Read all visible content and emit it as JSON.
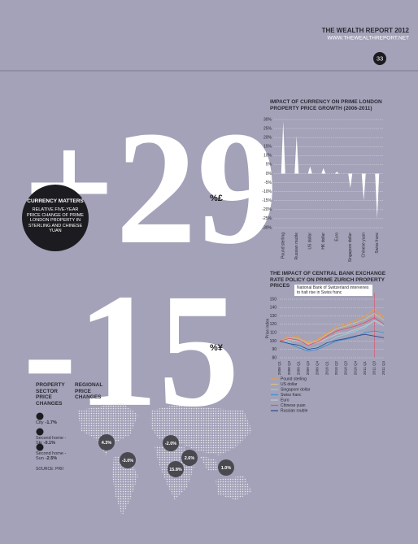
{
  "header": {
    "title": "THE WEALTH REPORT 2012",
    "url": "WWW.THEWEALTHREPORT.NET",
    "page": "33"
  },
  "headline": {
    "figures": [
      {
        "number": "+29",
        "unit": "%£"
      },
      {
        "number": "-15",
        "unit": "%¥"
      }
    ],
    "badge": {
      "title": "CURRENCY MATTERS",
      "text": "RELATIVE FIVE-YEAR PRICE CHANGE OF PRIME LONDON PROPERTY IN STERLING AND CHINESE YUAN"
    }
  },
  "chart_data": [
    {
      "type": "bar",
      "title": "IMPACT OF CURRENCY ON PRIME LONDON PROPERTY PRICE GROWTH (2006-2011)",
      "categories": [
        "Pound sterling",
        "Russian rouble",
        "US dollar",
        "HK dollar",
        "Euro",
        "Singapore dollar",
        "Chinese yuan",
        "Swiss franc"
      ],
      "values": [
        29,
        21,
        4,
        3,
        1,
        -8,
        -15,
        -25
      ],
      "color": "#ffffff",
      "ylim": [
        -30,
        30
      ],
      "yticks": [
        {
          "value": 30,
          "label": "30%"
        },
        {
          "value": 25,
          "label": "25%"
        },
        {
          "value": 20,
          "label": "20%"
        },
        {
          "value": 15,
          "label": "15%"
        },
        {
          "value": 10,
          "label": "10%"
        },
        {
          "value": 5,
          "label": "5%"
        },
        {
          "value": 0,
          "label": "0%"
        },
        {
          "value": -5,
          "label": "-5%"
        },
        {
          "value": -10,
          "label": "-10%"
        },
        {
          "value": -15,
          "label": "-15%"
        },
        {
          "value": -20,
          "label": "-20%"
        },
        {
          "value": -25,
          "label": "-25%"
        },
        {
          "value": -30,
          "label": "-30%"
        }
      ],
      "grid": true
    },
    {
      "type": "line",
      "title": "THE IMPACT OF CENTRAL BANK EXCHANGE RATE POLICY ON PRIME ZURICH PROPERTY PRICES",
      "annotation": "National Bank of Switzerland intervenes to halt rise in Swiss franc",
      "y_label": "Price index",
      "categories": [
        "2008 Q1",
        "2008 Q3",
        "2009 Q1",
        "2009 Q3",
        "2009 Q4",
        "2010 Q1",
        "2010 Q2",
        "2010 Q3",
        "2010 Q4",
        "2011 Q1",
        "2011 Q3",
        "2011 Q4"
      ],
      "series": [
        {
          "name": "Pound sterling",
          "color": "#f39a3c",
          "values": [
            100,
            107,
            105,
            98,
            102,
            110,
            118,
            120,
            125,
            130,
            138,
            128
          ]
        },
        {
          "name": "US dollar",
          "color": "#d9c27a",
          "values": [
            100,
            104,
            103,
            97,
            100,
            108,
            115,
            118,
            122,
            126,
            133,
            125
          ]
        },
        {
          "name": "Singapore dollar",
          "color": "#8fd0e6",
          "values": [
            100,
            98,
            94,
            90,
            93,
            98,
            105,
            108,
            112,
            116,
            125,
            120
          ]
        },
        {
          "name": "Swiss franc",
          "color": "#3f8fd0",
          "values": [
            100,
            97,
            92,
            88,
            90,
            95,
            100,
            102,
            105,
            110,
            112,
            110
          ]
        },
        {
          "name": "Euro",
          "color": "#c9c9c9",
          "values": [
            100,
            102,
            100,
            96,
            98,
            103,
            108,
            110,
            114,
            118,
            124,
            118
          ]
        },
        {
          "name": "Chinese yuan",
          "color": "#e0506a",
          "values": [
            100,
            103,
            101,
            95,
            99,
            106,
            112,
            115,
            118,
            122,
            128,
            120
          ]
        },
        {
          "name": "Russian rouble",
          "color": "#2e4a8c",
          "values": [
            100,
            97,
            95,
            90,
            92,
            98,
            101,
            103,
            106,
            108,
            106,
            104
          ]
        }
      ],
      "ylim": [
        80,
        150
      ],
      "yticks": [
        80,
        90,
        100,
        110,
        120,
        130,
        140,
        150
      ],
      "grid": true
    }
  ],
  "sector": {
    "title": "PROPERTY SECTOR PRICE CHANGES",
    "items": [
      {
        "label": "City",
        "change": "-1.7%"
      },
      {
        "label": "Second home - Ski",
        "change": "-0.1%"
      },
      {
        "label": "Second home - Sun",
        "change": "-2.5%"
      }
    ],
    "source": "SOURCE: PRII"
  },
  "regional": {
    "title": "REGIONAL PRICE CHANGES",
    "bubbles": [
      "4.3%",
      "-3.0%",
      "-2.0%",
      "2.6%",
      "15.8%",
      "1.0%"
    ]
  }
}
